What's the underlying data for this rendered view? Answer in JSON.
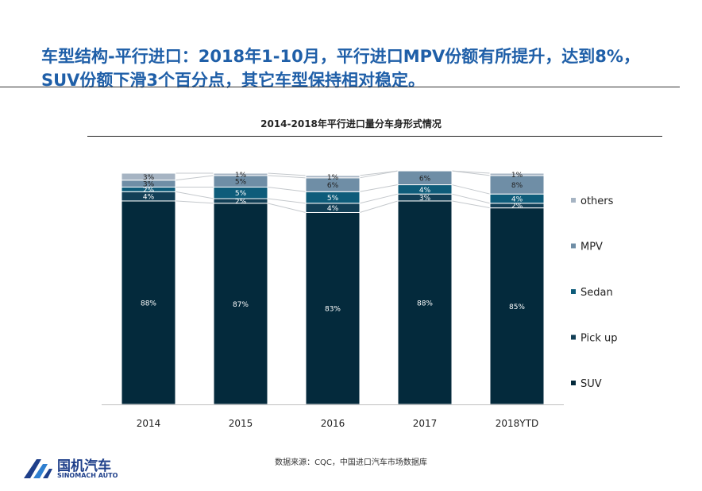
{
  "headline": {
    "line1": "车型结构-平行进口：2018年1-10月，平行进口MPV份额有所提升，达到8%，",
    "line2": "SUV份额下滑3个百分点，其它车型保持相对稳定。"
  },
  "source": "数据来源：CQC，中国进口汽车市场数据库",
  "logo": {
    "cn": "国机汽车",
    "en": "SINOMACH AUTO"
  },
  "colors": {
    "headline": "#1f5fa8",
    "SUV": "#042a3c",
    "Pick up": "#123f56",
    "Sedan": "#0e5c7a",
    "MPV": "#6f8ea6",
    "others": "#a6b4c3",
    "logo": "#1e3f8a"
  },
  "chart_data": {
    "type": "bar",
    "stacked": true,
    "title": "2014-2018年平行进口量分车身形式情况",
    "categories": [
      "2014",
      "2015",
      "2016",
      "2017",
      "2018YTD"
    ],
    "series": [
      {
        "name": "SUV",
        "values": [
          88,
          87,
          83,
          88,
          85
        ],
        "labels": [
          "88%",
          "87%",
          "83%",
          "88%",
          "85%"
        ]
      },
      {
        "name": "Pick up",
        "values": [
          4,
          2,
          4,
          3,
          2
        ],
        "labels": [
          "4%",
          "2%",
          "4%",
          "3%",
          "2%"
        ]
      },
      {
        "name": "Sedan",
        "values": [
          2,
          5,
          5,
          4,
          4
        ],
        "labels": [
          "2%",
          "5%",
          "5%",
          "4%",
          "4%"
        ]
      },
      {
        "name": "MPV",
        "values": [
          3,
          5,
          6,
          6,
          8
        ],
        "labels": [
          "3%",
          "5%",
          "6%",
          "6%",
          "8%"
        ]
      },
      {
        "name": "others",
        "values": [
          3,
          1,
          1,
          0,
          1
        ],
        "labels": [
          "3%",
          "1%",
          "1%",
          "",
          "1%"
        ]
      }
    ],
    "legend": {
      "placement": "right",
      "order": [
        "others",
        "MPV",
        "Sedan",
        "Pick up",
        "SUV"
      ]
    },
    "ylim": [
      0,
      100
    ],
    "grid": false
  }
}
